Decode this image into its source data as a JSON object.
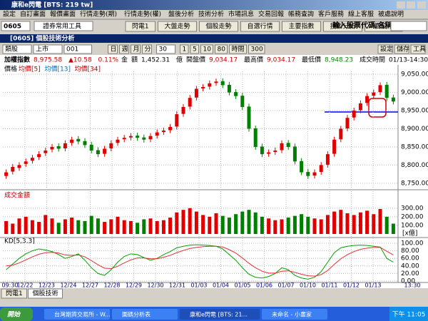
{
  "window_title": "康和e閃電 [BTS: 219 tw]",
  "menu": [
    "設定",
    "自訂畫面",
    "報價畫面",
    "行情走勢(期)",
    "行情走勢(權)",
    "盤後分析",
    "技術分析",
    "市場訊息",
    "交易回報",
    "帳務查詢",
    "客戶服務",
    "線上客服",
    "被處說明"
  ],
  "toolbar": {
    "account": "0605",
    "tools": "證券常用工具",
    "buttons": [
      "閃電1",
      "大盤走勢",
      "個股走勢",
      "自選行情",
      "主要指數",
      "技術分析",
      "個股..."
    ],
    "search_label": "輸入股票代碼/名稱:"
  },
  "panel": {
    "title": "[0605] 個股技術分析",
    "controls": [
      "類股",
      "上市",
      "001"
    ],
    "periods": [
      "日",
      "週",
      "月",
      "分"
    ],
    "interval": "30",
    "zooms": [
      "1",
      "5",
      "10",
      "80",
      "時間",
      "300"
    ],
    "actions": [
      "設定",
      "儲存",
      "工具"
    ]
  },
  "quote": [
    "加權指數",
    "8,975.58",
    "▲10.58",
    "0.11%",
    "金",
    "額",
    "1,452.31",
    "億",
    "開盤價",
    "9,034.17",
    "最高價",
    "9,034.17",
    "最低價",
    "8,948.23",
    "成交時間",
    "01/13-14:30:00"
  ],
  "chart_data": {
    "type": "candlestick",
    "legend": [
      "價格",
      "均價[5]",
      "均價[13]",
      "均價[34]"
    ],
    "open": [
      8770,
      8782,
      8792,
      8803,
      8812,
      8822,
      8833,
      8843,
      8852,
      8846,
      8861,
      8872,
      8866,
      8856,
      8841,
      8831,
      8846,
      8861,
      8871,
      8876,
      8881,
      8876,
      8871,
      8881,
      8891,
      8896,
      8906,
      8941,
      8961,
      8986,
      9011,
      9016,
      9026,
      9031,
      9021,
      9001,
      8991,
      8961,
      8901,
      8851,
      8831,
      8836,
      8841,
      8861,
      8851,
      8811,
      8781,
      8771,
      8781,
      8801,
      8831,
      8871,
      8901,
      8931,
      8951,
      8971,
      8991,
      9001,
      9021,
      8986
    ],
    "high": [
      8788,
      8803,
      8808,
      8818,
      8828,
      8838,
      8848,
      8858,
      8860,
      8868,
      8878,
      8880,
      8874,
      8864,
      8849,
      8853,
      8868,
      8878,
      8883,
      8888,
      8889,
      8884,
      8888,
      8898,
      8903,
      8913,
      8948,
      8968,
      8993,
      9018,
      9023,
      9033,
      9038,
      9039,
      9029,
      9009,
      8999,
      8969,
      8909,
      8859,
      8843,
      8848,
      8868,
      8869,
      8859,
      8819,
      8789,
      8788,
      8808,
      8838,
      8878,
      8908,
      8938,
      8958,
      8978,
      8998,
      9008,
      9028,
      9029,
      8994
    ],
    "low": [
      8762,
      8774,
      8784,
      8795,
      8804,
      8814,
      8825,
      8835,
      8837,
      8838,
      8853,
      8857,
      8847,
      8832,
      8822,
      8823,
      8838,
      8853,
      8863,
      8868,
      8867,
      8862,
      8863,
      8873,
      8883,
      8888,
      8898,
      8933,
      8953,
      8978,
      9003,
      9008,
      9018,
      9012,
      8992,
      8982,
      8952,
      8892,
      8842,
      8822,
      8823,
      8828,
      8833,
      8842,
      8802,
      8772,
      8762,
      8763,
      8773,
      8793,
      8823,
      8863,
      8893,
      8923,
      8943,
      8963,
      8983,
      8993,
      8977,
      8967
    ],
    "close": [
      8780,
      8795,
      8800,
      8810,
      8820,
      8830,
      8840,
      8850,
      8845,
      8860,
      8870,
      8865,
      8855,
      8840,
      8830,
      8845,
      8860,
      8870,
      8875,
      8880,
      8875,
      8870,
      8880,
      8890,
      8895,
      8905,
      8940,
      8960,
      8985,
      9010,
      9015,
      9025,
      9030,
      9020,
      9000,
      8990,
      8960,
      8900,
      8850,
      8830,
      8835,
      8840,
      8860,
      8850,
      8810,
      8780,
      8770,
      8780,
      8800,
      8830,
      8870,
      8900,
      8930,
      8950,
      8970,
      8990,
      9000,
      9020,
      8985,
      8975
    ],
    "ylim": [
      8734,
      9066
    ],
    "yticks": [
      {
        "value": 8750,
        "label": "8,750.00"
      },
      {
        "value": 8800,
        "label": "8,800.00"
      },
      {
        "value": 8850,
        "label": "8,850.00"
      },
      {
        "value": 8900,
        "label": "8,900.00"
      },
      {
        "value": 8950,
        "label": "8,950.00"
      },
      {
        "value": 9000,
        "label": "9,000.00"
      },
      {
        "value": 9050,
        "label": "9,050.00"
      }
    ],
    "up_color": "#e00000",
    "down_color": "#008000",
    "x_labels": [
      "09:30",
      "12/22",
      "12/23",
      "12/24",
      "12/27",
      "12/28",
      "12/29",
      "12/30",
      "12/31",
      "01/03",
      "01/04",
      "01/05",
      "01/06",
      "01/07",
      "01/10",
      "01/11",
      "01/12",
      "01/13",
      "13:30"
    ],
    "volume": {
      "title": "成交金額",
      "unit": "[x億]",
      "values": [
        150,
        120,
        180,
        200,
        160,
        140,
        220,
        180,
        130,
        170,
        190,
        160,
        150,
        210,
        180,
        140,
        170,
        200,
        160,
        150,
        130,
        170,
        180,
        150,
        160,
        190,
        250,
        280,
        300,
        260,
        220,
        200,
        240,
        210,
        190,
        230,
        260,
        280,
        250,
        200,
        180,
        160,
        170,
        190,
        210,
        230,
        200,
        180,
        170,
        220,
        260,
        280,
        240,
        220,
        250,
        270,
        230,
        290,
        200,
        120
      ],
      "ylim": [
        0,
        480
      ],
      "yticks": [
        {
          "value": 100,
          "label": "100.00"
        },
        {
          "value": 200,
          "label": "200.00"
        },
        {
          "value": 300,
          "label": "300.00"
        }
      ]
    },
    "kd": {
      "title": "KD[5,3,3]",
      "k": [
        30,
        45,
        60,
        72,
        80,
        85,
        82,
        78,
        70,
        60,
        65,
        72,
        55,
        35,
        20,
        15,
        30,
        50,
        65,
        72,
        70,
        62,
        55,
        60,
        70,
        78,
        88,
        92,
        95,
        96,
        95,
        94,
        92,
        85,
        70,
        55,
        35,
        18,
        10,
        8,
        12,
        20,
        35,
        30,
        15,
        8,
        5,
        10,
        25,
        50,
        75,
        88,
        92,
        94,
        95,
        94,
        92,
        90,
        60,
        50
      ],
      "d": [
        40,
        42,
        48,
        56,
        64,
        71,
        75,
        76,
        74,
        69,
        68,
        69,
        64,
        54,
        43,
        34,
        33,
        39,
        48,
        56,
        61,
        61,
        59,
        59,
        63,
        68,
        75,
        81,
        86,
        89,
        91,
        92,
        92,
        90,
        83,
        74,
        61,
        47,
        35,
        26,
        21,
        21,
        26,
        27,
        23,
        18,
        14,
        13,
        17,
        28,
        44,
        59,
        70,
        78,
        84,
        87,
        89,
        89,
        79,
        69
      ],
      "k_color": "#00a000",
      "d_color": "#e03030",
      "ylim": [
        0,
        100
      ],
      "yticks": [
        {
          "value": 0,
          "label": "0.00"
        },
        {
          "value": 20,
          "label": "20.00"
        },
        {
          "value": 40,
          "label": "40.00"
        },
        {
          "value": 60,
          "label": "60.00"
        },
        {
          "value": 80,
          "label": "80.00"
        },
        {
          "value": 100,
          "label": "100.00"
        }
      ]
    }
  },
  "tabs": [
    "閃電1",
    "個股技術"
  ],
  "taskbar": {
    "start": "開始",
    "items": [
      "台灣期貨交易所 - W...",
      "圖碼分析表",
      "康和e閃電 [BTS: 21...",
      "未命名 - 小畫家"
    ],
    "clock": "下午 11:05"
  }
}
